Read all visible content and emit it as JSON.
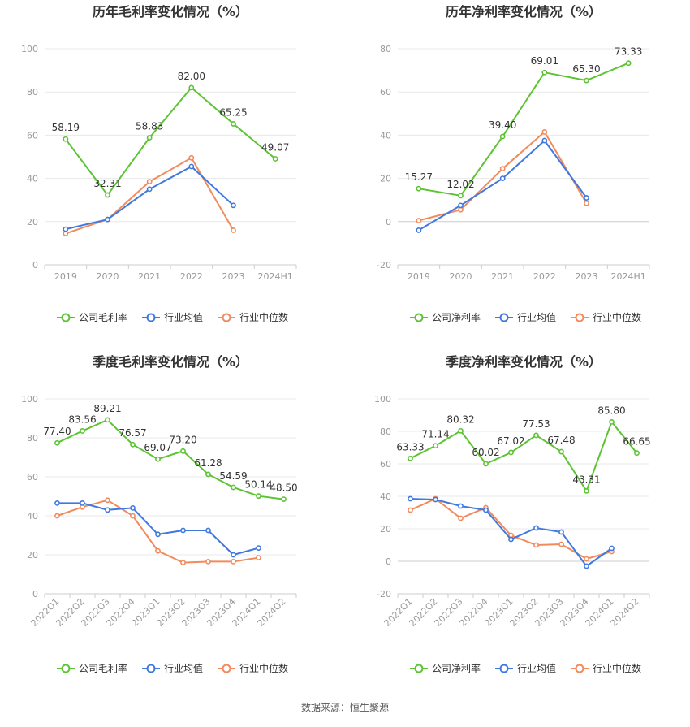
{
  "source_note": "数据来源：恒生聚源",
  "legend_icons": {
    "line": "line-circle-marker-icon"
  },
  "chart_data": [
    {
      "type": "line",
      "title": "历年毛利率变化情况（%）",
      "categories": [
        "2019",
        "2020",
        "2021",
        "2022",
        "2023",
        "2024H1"
      ],
      "ylim": [
        0,
        100
      ],
      "yticks": [
        0,
        20,
        40,
        60,
        80,
        100
      ],
      "grid": true,
      "legend_position": "bottom",
      "series": [
        {
          "name": "公司毛利率",
          "color": "#5cc433",
          "labeled": true,
          "values": [
            58.19,
            32.31,
            58.83,
            82.0,
            65.25,
            49.07
          ],
          "labels": [
            "58.19",
            "32.31",
            "58.83",
            "82.00",
            "65.25",
            "49.07"
          ]
        },
        {
          "name": "行业均值",
          "color": "#3f79e0",
          "labeled": false,
          "values": [
            16.5,
            21.0,
            35.0,
            45.5,
            27.5,
            null
          ]
        },
        {
          "name": "行业中位数",
          "color": "#f28a5c",
          "labeled": false,
          "values": [
            14.5,
            21.0,
            38.5,
            49.5,
            16.0,
            null
          ]
        }
      ]
    },
    {
      "type": "line",
      "title": "历年净利率变化情况（%）",
      "categories": [
        "2019",
        "2020",
        "2021",
        "2022",
        "2023",
        "2024H1"
      ],
      "ylim": [
        -20,
        80
      ],
      "yticks": [
        -20,
        0,
        20,
        40,
        60,
        80
      ],
      "grid": true,
      "legend_position": "bottom",
      "series": [
        {
          "name": "公司净利率",
          "color": "#5cc433",
          "labeled": true,
          "values": [
            15.27,
            12.02,
            39.4,
            69.01,
            65.3,
            73.33
          ],
          "labels": [
            "15.27",
            "12.02",
            "39.40",
            "69.01",
            "65.30",
            "73.33"
          ]
        },
        {
          "name": "行业均值",
          "color": "#3f79e0",
          "labeled": false,
          "values": [
            -4.0,
            7.5,
            20.0,
            37.5,
            11.0,
            null
          ]
        },
        {
          "name": "行业中位数",
          "color": "#f28a5c",
          "labeled": false,
          "values": [
            0.5,
            5.5,
            24.5,
            41.5,
            8.5,
            null
          ]
        }
      ]
    },
    {
      "type": "line",
      "title": "季度毛利率变化情况（%）",
      "categories": [
        "2022Q1",
        "2022Q2",
        "2022Q3",
        "2022Q4",
        "2023Q1",
        "2023Q2",
        "2023Q3",
        "2023Q4",
        "2024Q1",
        "2024Q2"
      ],
      "ylim": [
        0,
        100
      ],
      "yticks": [
        0,
        20,
        40,
        60,
        80,
        100
      ],
      "grid": true,
      "legend_position": "bottom",
      "series": [
        {
          "name": "公司毛利率",
          "color": "#5cc433",
          "labeled": true,
          "values": [
            77.4,
            83.56,
            89.21,
            76.57,
            69.07,
            73.2,
            61.28,
            54.59,
            50.14,
            48.5
          ],
          "labels": [
            "77.40",
            "83.56",
            "89.21",
            "76.57",
            "69.07",
            "73.20",
            "61.28",
            "54.59",
            "50.14",
            "48.50"
          ]
        },
        {
          "name": "行业均值",
          "color": "#3f79e0",
          "labeled": false,
          "values": [
            46.5,
            46.5,
            43.0,
            44.0,
            30.5,
            32.5,
            32.5,
            20.0,
            23.5,
            null
          ]
        },
        {
          "name": "行业中位数",
          "color": "#f28a5c",
          "labeled": false,
          "values": [
            40.0,
            44.5,
            48.0,
            40.0,
            22.0,
            16.0,
            16.5,
            16.5,
            18.5,
            null
          ]
        }
      ]
    },
    {
      "type": "line",
      "title": "季度净利率变化情况（%）",
      "categories": [
        "2022Q1",
        "2022Q2",
        "2022Q3",
        "2022Q4",
        "2023Q1",
        "2023Q2",
        "2023Q3",
        "2023Q4",
        "2024Q1",
        "2024Q2"
      ],
      "ylim": [
        -20,
        100
      ],
      "yticks": [
        -20,
        0,
        20,
        40,
        60,
        80,
        100
      ],
      "grid": true,
      "legend_position": "bottom",
      "series": [
        {
          "name": "公司净利率",
          "color": "#5cc433",
          "labeled": true,
          "values": [
            63.33,
            71.14,
            80.32,
            60.02,
            67.02,
            77.53,
            67.48,
            43.31,
            85.8,
            66.65
          ],
          "labels": [
            "63.33",
            "71.14",
            "80.32",
            "60.02",
            "67.02",
            "77.53",
            "67.48",
            "43.31",
            "85.80",
            "66.65"
          ]
        },
        {
          "name": "行业均值",
          "color": "#3f79e0",
          "labeled": false,
          "values": [
            38.5,
            38.0,
            34.0,
            31.5,
            13.5,
            20.5,
            18.0,
            -3.0,
            8.0,
            null
          ]
        },
        {
          "name": "行业中位数",
          "color": "#f28a5c",
          "labeled": false,
          "values": [
            31.5,
            38.5,
            26.5,
            33.0,
            16.0,
            10.0,
            10.5,
            1.5,
            6.0,
            null
          ]
        }
      ]
    }
  ]
}
